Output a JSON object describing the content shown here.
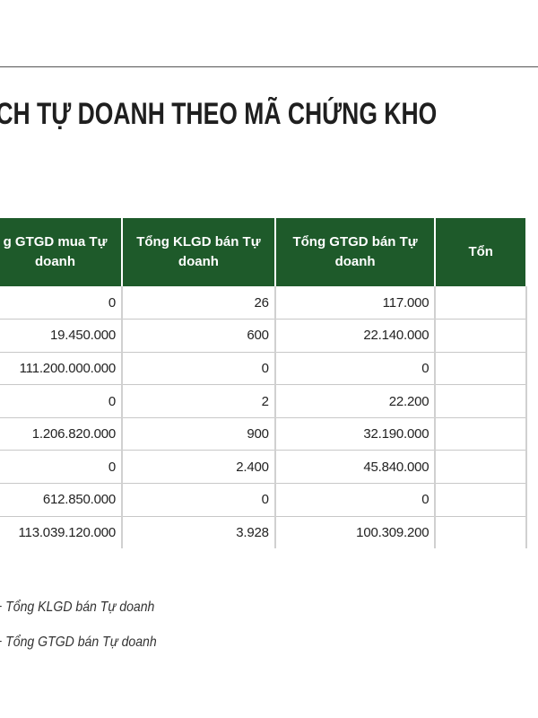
{
  "title": "ỊCH TỰ DOANH THEO MÃ CHỨNG KHO",
  "table": {
    "headers": [
      "g GTGD mua Tự\ndoanh",
      "Tổng KLGD bán Tự\ndoanh",
      "Tổng GTGD bán Tự\ndoanh",
      "Tổn"
    ],
    "rows": [
      [
        "0",
        "26",
        "117.000"
      ],
      [
        "19.450.000",
        "600",
        "22.140.000"
      ],
      [
        "111.200.000.000",
        "0",
        "0"
      ],
      [
        "0",
        "2",
        "22.200"
      ],
      [
        "1.206.820.000",
        "900",
        "32.190.000"
      ],
      [
        "0",
        "2.400",
        "45.840.000"
      ],
      [
        "612.850.000",
        "0",
        "0"
      ],
      [
        "113.039.120.000",
        "3.928",
        "100.309.200"
      ]
    ]
  },
  "notes": [
    "+ Tổng KLGD bán Tự doanh",
    "+ Tổng GTGD bán Tự doanh"
  ],
  "colors": {
    "header_bg": "#1e5a2a",
    "header_text": "#ffffff"
  }
}
